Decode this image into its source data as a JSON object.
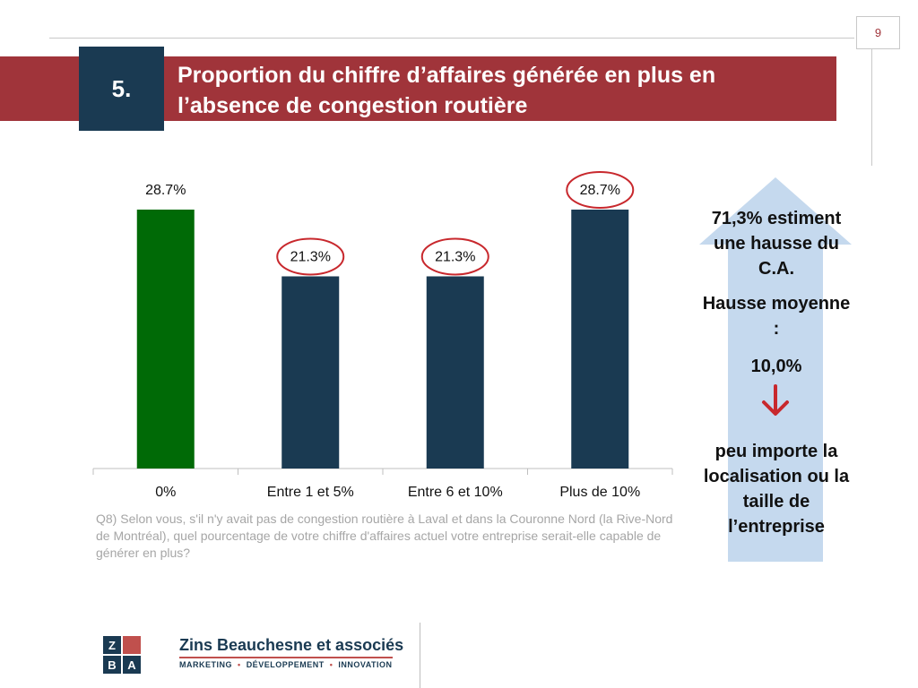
{
  "header": {
    "page_number": "9",
    "section_number": "5.",
    "title": "Proportion du chiffre d’affaires générée en plus en l’absence de congestion routière"
  },
  "colors": {
    "band": "#a0343a",
    "navy": "#1a3a52",
    "green": "#006a06",
    "circle": "#c8282d",
    "arrow_fill": "#c5d9ee"
  },
  "chart_data": {
    "type": "bar",
    "categories": [
      "0%",
      "Entre 1 et 5%",
      "Entre 6 et 10%",
      "Plus de 10%"
    ],
    "values": [
      28.7,
      21.3,
      21.3,
      28.7
    ],
    "data_labels": [
      "28.7%",
      "21.3%",
      "21.3%",
      "28.7%"
    ],
    "bar_colors": [
      "#006a06",
      "#1a3a52",
      "#1a3a52",
      "#1a3a52"
    ],
    "circled": [
      false,
      true,
      true,
      true
    ],
    "ylim": [
      0,
      40
    ],
    "grid": false,
    "title": "",
    "xlabel": "",
    "ylabel": ""
  },
  "question": "Q8) Selon vous, s'il n'y avait pas de congestion routière à Laval et dans la Couronne Nord (la Rive-Nord de Montréal), quel pourcentage de votre chiffre d'affaires actuel votre entreprise serait-elle capable de générer en plus?",
  "side_panel": {
    "estimate_text": "71,3% estiment une hausse du C.A.",
    "average_label": "Hausse moyenne :",
    "average_value": "10,0%",
    "conclusion": "peu importe la localisation ou la taille de l’entreprise",
    "arrow_icon": "down-arrow"
  },
  "logo": {
    "letters": [
      "Z",
      "",
      "B",
      "A"
    ],
    "name": "Zins Beauchesne et associés",
    "tagline": [
      "MARKETING",
      "DÉVELOPPEMENT",
      "INNOVATION"
    ]
  }
}
